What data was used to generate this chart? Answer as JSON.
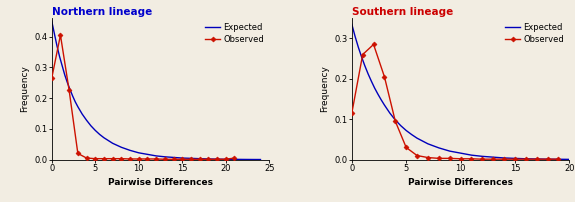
{
  "north": {
    "title": "Northern lineage",
    "title_color": "#0000cc",
    "expected_x": [
      0,
      0.3,
      0.6,
      0.9,
      1.2,
      1.5,
      1.8,
      2.1,
      2.4,
      2.7,
      3.0,
      3.5,
      4.0,
      4.5,
      5.0,
      5.5,
      6,
      7,
      8,
      9,
      10,
      11,
      12,
      13,
      14,
      15,
      16,
      17,
      18,
      19,
      20,
      21,
      22,
      23,
      24
    ],
    "expected_y": [
      0.45,
      0.41,
      0.37,
      0.335,
      0.305,
      0.275,
      0.25,
      0.228,
      0.207,
      0.188,
      0.172,
      0.148,
      0.128,
      0.11,
      0.095,
      0.082,
      0.071,
      0.053,
      0.04,
      0.03,
      0.022,
      0.017,
      0.012,
      0.009,
      0.007,
      0.005,
      0.004,
      0.003,
      0.002,
      0.0015,
      0.001,
      0.0008,
      0.0005,
      0.0003,
      0.0002
    ],
    "observed_x": [
      0,
      1,
      2,
      3,
      4,
      5,
      6,
      7,
      8,
      9,
      10,
      11,
      12,
      13,
      14,
      15,
      16,
      17,
      18,
      19,
      20,
      21
    ],
    "observed_y": [
      0.265,
      0.405,
      0.225,
      0.02,
      0.005,
      0.003,
      0.003,
      0.003,
      0.003,
      0.002,
      0.002,
      0.002,
      0.002,
      0.001,
      0.001,
      0.001,
      0.001,
      0.001,
      0.001,
      0.001,
      0.001,
      0.005
    ],
    "xlim": [
      0,
      25
    ],
    "ylim": [
      0,
      0.46
    ],
    "xticks": [
      0,
      5,
      10,
      15,
      20,
      25
    ],
    "yticks": [
      0.0,
      0.1,
      0.2,
      0.3,
      0.4
    ]
  },
  "south": {
    "title": "Southern lineage",
    "title_color": "#cc0000",
    "expected_x": [
      0,
      0.3,
      0.6,
      0.9,
      1.2,
      1.5,
      1.8,
      2.1,
      2.4,
      2.7,
      3.0,
      3.5,
      4.0,
      4.5,
      5.0,
      5.5,
      6,
      7,
      8,
      9,
      10,
      11,
      12,
      13,
      14,
      15,
      16,
      17,
      18,
      19,
      20
    ],
    "expected_y": [
      0.335,
      0.305,
      0.278,
      0.254,
      0.232,
      0.212,
      0.194,
      0.177,
      0.162,
      0.148,
      0.135,
      0.115,
      0.098,
      0.084,
      0.072,
      0.062,
      0.053,
      0.039,
      0.029,
      0.021,
      0.016,
      0.011,
      0.008,
      0.006,
      0.004,
      0.003,
      0.002,
      0.0015,
      0.001,
      0.0008,
      0.0005
    ],
    "observed_x": [
      0,
      1,
      2,
      3,
      4,
      5,
      6,
      7,
      8,
      9,
      10,
      11,
      12,
      13,
      14,
      15,
      16,
      17,
      18,
      19
    ],
    "observed_y": [
      0.115,
      0.26,
      0.285,
      0.205,
      0.095,
      0.03,
      0.01,
      0.005,
      0.003,
      0.003,
      0.002,
      0.002,
      0.001,
      0.001,
      0.001,
      0.001,
      0.001,
      0.001,
      0.001,
      0.001
    ],
    "xlim": [
      0,
      20
    ],
    "ylim": [
      0,
      0.35
    ],
    "xticks": [
      0,
      5,
      10,
      15,
      20
    ],
    "yticks": [
      0.0,
      0.1,
      0.2,
      0.3
    ]
  },
  "expected_color": "#0000bb",
  "observed_color": "#cc1100",
  "line_width": 1.0,
  "marker": "D",
  "marker_size": 2.5,
  "xlabel": "Pairwise Differences",
  "ylabel": "Frequency",
  "legend_expected": "Expected",
  "legend_observed": "Observed",
  "bg_color": "#f2ede2"
}
